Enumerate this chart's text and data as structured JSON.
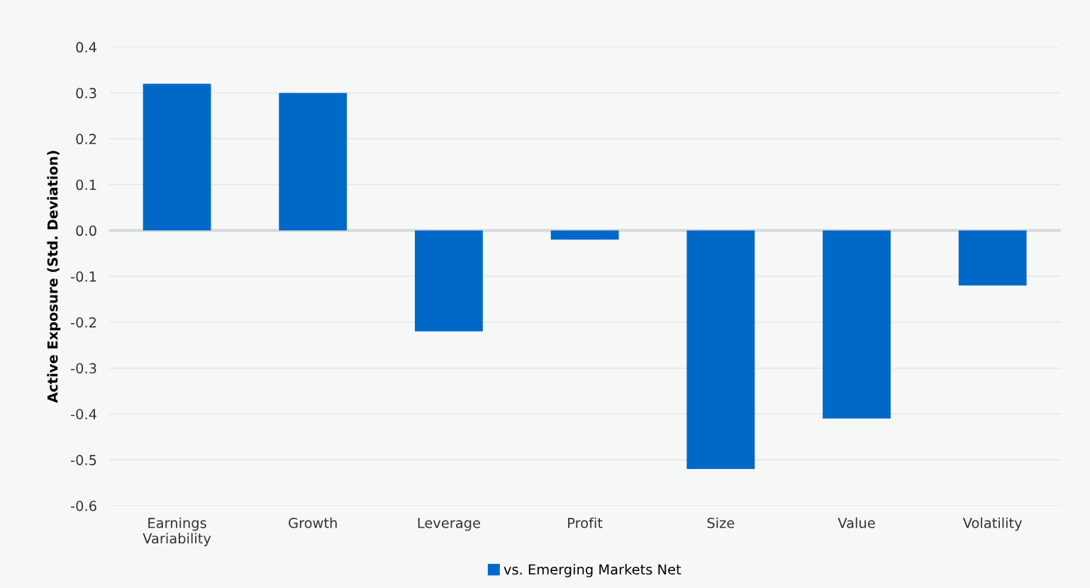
{
  "chart_data": {
    "type": "bar",
    "ylabel": "Active Exposure (Std. Deviation)",
    "categories": [
      "Earnings\nVariability",
      "Growth",
      "Leverage",
      "Profit",
      "Size",
      "Value",
      "Volatility"
    ],
    "series": [
      {
        "name": "vs. Emerging Markets Net",
        "color": "#0069c8",
        "values": [
          0.32,
          0.3,
          -0.22,
          -0.02,
          -0.52,
          -0.41,
          -0.12
        ]
      }
    ],
    "ylim": [
      -0.6,
      0.4
    ],
    "yticks": [
      {
        "value": -0.6,
        "label": "-0.6"
      },
      {
        "value": -0.5,
        "label": "-0.5"
      },
      {
        "value": -0.4,
        "label": "-0.4"
      },
      {
        "value": -0.3,
        "label": "-0.3"
      },
      {
        "value": -0.2,
        "label": "-0.2"
      },
      {
        "value": -0.1,
        "label": "-0.1"
      },
      {
        "value": 0,
        "label": "0.0"
      },
      {
        "value": 0.1,
        "label": "0.1"
      },
      {
        "value": 0.2,
        "label": "0.2"
      },
      {
        "value": 0.3,
        "label": "0.3"
      },
      {
        "value": 0.4,
        "label": "0.4"
      }
    ],
    "ref_lines": [
      {
        "axis": "y",
        "value": 0,
        "color": "#d9d9d9"
      }
    ],
    "grid": "y",
    "legend": "bottom"
  }
}
